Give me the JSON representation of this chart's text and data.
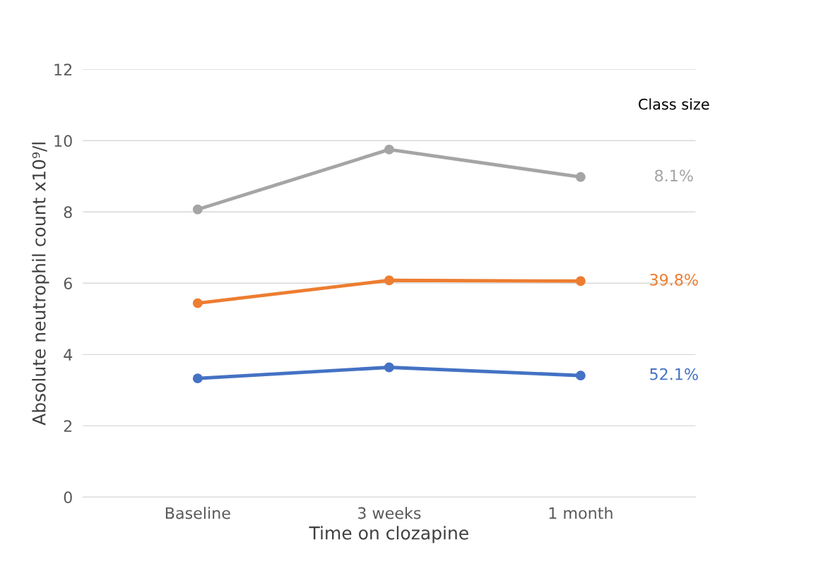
{
  "chart_data": {
    "type": "line",
    "xlabel": "Time on clozapine",
    "ylabel": "Absolute neutrophil count x10⁹/l",
    "legend_title": "Class size",
    "categories": [
      "Baseline",
      "3 weeks",
      "1 month"
    ],
    "series": [
      {
        "name": "8.1%",
        "color": "#a5a5a5",
        "values": [
          8.07,
          9.75,
          8.98
        ]
      },
      {
        "name": "39.8%",
        "color": "#ed7d31",
        "values": [
          5.44,
          6.08,
          6.06
        ]
      },
      {
        "name": "52.1%",
        "color": "#4472c4",
        "values": [
          3.33,
          3.64,
          3.41
        ]
      }
    ],
    "ylim": [
      0,
      12
    ],
    "yticks": [
      0,
      2,
      4,
      6,
      8,
      10,
      12
    ],
    "grid": "y",
    "marker": "circle",
    "line_style": "solid",
    "legend": "right"
  }
}
